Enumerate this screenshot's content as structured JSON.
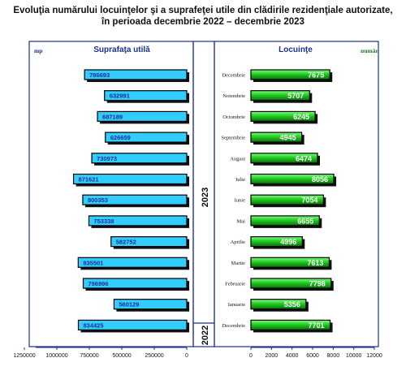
{
  "title_line1": "Evoluţia numărului locuinţelor şi a suprafeţei utile din clădirile rezidenţiale autorizate,",
  "title_line2": "în perioada decembrie 2022 – decembrie 2023",
  "chart_data": [
    {
      "type": "bar",
      "orientation": "horizontal",
      "direction": "right-to-left",
      "title": "Suprafaţa utilă",
      "unit_label": "mp",
      "categories": [
        "Decembrie",
        "Noiembrie",
        "Octombrie",
        "Septembrie",
        "August",
        "Iulie",
        "Iunie",
        "Mai",
        "Aprilie",
        "Martie",
        "Februarie",
        "Ianuarie",
        "Decembrie"
      ],
      "values": [
        786693,
        632991,
        687189,
        626659,
        730973,
        871621,
        800353,
        753338,
        582752,
        835501,
        796996,
        560129,
        834425
      ],
      "xlim": [
        0,
        1400000
      ],
      "xticks": [
        0,
        250000,
        500000,
        750000,
        1000000,
        1250000
      ],
      "xtick_labels": [
        "0",
        "250000",
        "500000",
        "750000",
        "1000000",
        "1250000"
      ],
      "bar_color": "#33ccff"
    },
    {
      "type": "bar",
      "orientation": "horizontal",
      "title": "Locuinţe",
      "unit_label": "număr",
      "categories": [
        "Decembrie",
        "Noiembrie",
        "Octombrie",
        "Septembrie",
        "August",
        "Iulie",
        "Iunie",
        "Mai",
        "Aprilie",
        "Martie",
        "Februarie",
        "Ianuarie",
        "Decembrie"
      ],
      "values": [
        7675,
        5707,
        6245,
        4945,
        6474,
        8056,
        7054,
        6655,
        4996,
        7613,
        7798,
        5356,
        7701
      ],
      "xlim": [
        0,
        12000
      ],
      "xticks": [
        0,
        2000,
        4000,
        6000,
        8000,
        10000,
        12000
      ],
      "xtick_labels": [
        "0",
        "2000",
        "4000",
        "6000",
        "8000",
        "10000",
        "12000"
      ],
      "bar_color": "#22cc22"
    }
  ],
  "year_labels": [
    "2023",
    "2022"
  ],
  "colors": {
    "title_blue": "#1a2f8f",
    "unit_green": "#1a7a1a",
    "axis": "#1a2f8f"
  }
}
